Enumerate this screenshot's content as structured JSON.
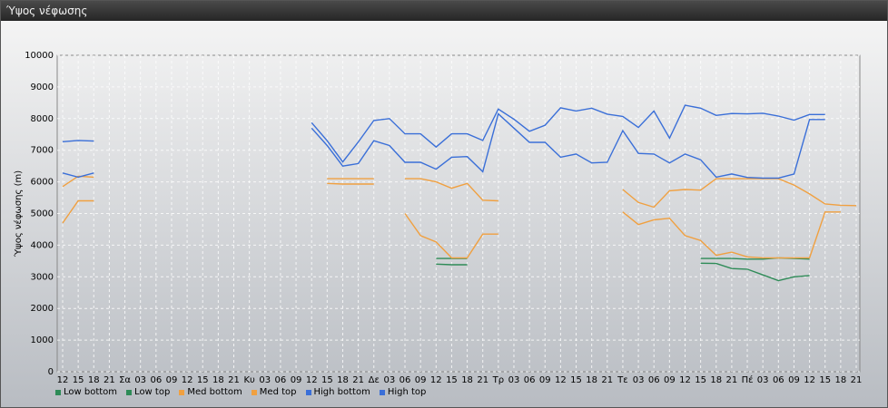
{
  "window": {
    "title": "Ύψος νέφωσης"
  },
  "chart_data": {
    "type": "line",
    "title": "",
    "ylabel": "Ύψος νέφωσης (m)",
    "xlabel": "",
    "ylim": [
      0,
      10000
    ],
    "yticks": [
      0,
      1000,
      2000,
      3000,
      4000,
      5000,
      6000,
      7000,
      8000,
      9000,
      10000
    ],
    "grid": true,
    "legend_position": "bottom-left",
    "x": [
      "12",
      "15",
      "18",
      "21",
      "Σα",
      "03",
      "06",
      "09",
      "12",
      "15",
      "18",
      "21",
      "Κυ",
      "03",
      "06",
      "09",
      "12",
      "15",
      "18",
      "21",
      "Δε",
      "03",
      "06",
      "09",
      "12",
      "15",
      "18",
      "21",
      "Τρ",
      "03",
      "06",
      "09",
      "12",
      "15",
      "18",
      "21",
      "Τε",
      "03",
      "06",
      "09",
      "12",
      "15",
      "18",
      "21",
      "Πέ",
      "03",
      "06",
      "09",
      "12",
      "15",
      "18",
      "21"
    ],
    "series": [
      {
        "name": "Low bottom",
        "color": "#2e8b57",
        "values": [
          null,
          null,
          null,
          null,
          null,
          null,
          null,
          null,
          null,
          null,
          null,
          null,
          null,
          null,
          null,
          null,
          null,
          null,
          null,
          null,
          null,
          null,
          null,
          null,
          3400,
          3380,
          3380,
          null,
          null,
          null,
          null,
          null,
          null,
          null,
          null,
          null,
          null,
          null,
          null,
          null,
          null,
          3430,
          3420,
          3260,
          3240,
          3060,
          2880,
          3000,
          3040,
          null,
          null,
          null
        ]
      },
      {
        "name": "Low top",
        "color": "#2e8b57",
        "values": [
          null,
          null,
          null,
          null,
          null,
          null,
          null,
          null,
          null,
          null,
          null,
          null,
          null,
          null,
          null,
          null,
          null,
          null,
          null,
          null,
          null,
          null,
          null,
          null,
          3580,
          3580,
          3580,
          null,
          null,
          null,
          null,
          null,
          null,
          null,
          null,
          null,
          null,
          null,
          null,
          null,
          null,
          3580,
          3580,
          3580,
          3560,
          3560,
          3600,
          3580,
          3560,
          null,
          null,
          null
        ]
      },
      {
        "name": "Med bottom",
        "color": "#f0a040",
        "values": [
          4700,
          5400,
          5400,
          null,
          null,
          null,
          null,
          null,
          null,
          null,
          null,
          null,
          null,
          null,
          null,
          null,
          null,
          5950,
          5930,
          5930,
          5930,
          null,
          5000,
          4300,
          4100,
          3600,
          3600,
          4350,
          4350,
          null,
          null,
          null,
          null,
          null,
          null,
          null,
          5050,
          4650,
          4800,
          4850,
          4300,
          4150,
          3680,
          3780,
          3630,
          3600,
          3600,
          3600,
          3600,
          5050,
          5050,
          null
        ]
      },
      {
        "name": "Med top",
        "color": "#f0a040",
        "values": [
          5850,
          6180,
          6150,
          null,
          null,
          null,
          null,
          null,
          null,
          null,
          null,
          null,
          null,
          null,
          null,
          null,
          null,
          6100,
          6100,
          6100,
          6100,
          null,
          6100,
          6100,
          6000,
          5800,
          5950,
          5420,
          5400,
          null,
          null,
          null,
          null,
          null,
          null,
          null,
          5760,
          5350,
          5200,
          5720,
          5760,
          5740,
          6100,
          6100,
          6100,
          6100,
          6100,
          5900,
          5620,
          5300,
          5260,
          5250
        ]
      },
      {
        "name": "High bottom",
        "color": "#3a6fd8",
        "values": [
          6280,
          6150,
          6280,
          null,
          null,
          null,
          null,
          null,
          null,
          null,
          null,
          null,
          null,
          null,
          null,
          null,
          7700,
          7150,
          6500,
          6580,
          7300,
          7150,
          6620,
          6620,
          6400,
          6780,
          6800,
          6320,
          8150,
          7700,
          7250,
          7250,
          6780,
          6880,
          6600,
          6620,
          7620,
          6900,
          6880,
          6600,
          6880,
          6700,
          6150,
          6250,
          6140,
          6120,
          6120,
          6250,
          7970,
          7970,
          null,
          null
        ]
      },
      {
        "name": "High top",
        "color": "#3a6fd8",
        "values": [
          7270,
          7310,
          7290,
          null,
          null,
          null,
          null,
          null,
          null,
          null,
          null,
          null,
          null,
          null,
          null,
          null,
          7870,
          7300,
          6630,
          7260,
          7940,
          8000,
          7520,
          7520,
          7100,
          7520,
          7520,
          7310,
          8300,
          7980,
          7600,
          7790,
          8340,
          8240,
          8330,
          8140,
          8070,
          7720,
          8240,
          7380,
          8420,
          8330,
          8100,
          8160,
          8150,
          8170,
          8080,
          7950,
          8130,
          8130,
          null,
          null
        ]
      }
    ]
  }
}
